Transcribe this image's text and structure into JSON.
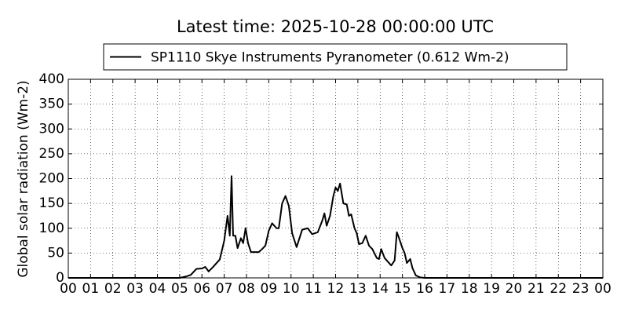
{
  "chart_data": {
    "type": "line",
    "title": "Latest time: 2025-10-28 00:00:00 UTC",
    "ylabel": "Global solar radiation (Wm-2)",
    "legend": "upper center",
    "grid": true,
    "xlim": [
      0,
      24
    ],
    "ylim": [
      0,
      400
    ],
    "yticks": [
      0,
      50,
      100,
      150,
      200,
      250,
      300,
      350,
      400
    ],
    "xticks": [
      {
        "value": 0,
        "label": "00"
      },
      {
        "value": 1,
        "label": "01"
      },
      {
        "value": 2,
        "label": "02"
      },
      {
        "value": 3,
        "label": "03"
      },
      {
        "value": 4,
        "label": "04"
      },
      {
        "value": 5,
        "label": "05"
      },
      {
        "value": 6,
        "label": "06"
      },
      {
        "value": 7,
        "label": "07"
      },
      {
        "value": 8,
        "label": "08"
      },
      {
        "value": 9,
        "label": "09"
      },
      {
        "value": 10,
        "label": "10"
      },
      {
        "value": 11,
        "label": "11"
      },
      {
        "value": 12,
        "label": "12"
      },
      {
        "value": 13,
        "label": "13"
      },
      {
        "value": 14,
        "label": "14"
      },
      {
        "value": 15,
        "label": "15"
      },
      {
        "value": 16,
        "label": "16"
      },
      {
        "value": 17,
        "label": "17"
      },
      {
        "value": 18,
        "label": "18"
      },
      {
        "value": 19,
        "label": "19"
      },
      {
        "value": 20,
        "label": "20"
      },
      {
        "value": 21,
        "label": "21"
      },
      {
        "value": 22,
        "label": "22"
      },
      {
        "value": 23,
        "label": "23"
      },
      {
        "value": 24,
        "label": "00"
      }
    ],
    "series": [
      {
        "name": "SP1110 Skye Instruments Pyranometer (0.612 Wm-2)",
        "color": "#000000",
        "x": [
          0,
          5.0,
          5.3,
          5.5,
          5.75,
          6.0,
          6.15,
          6.3,
          6.5,
          6.8,
          7.0,
          7.15,
          7.25,
          7.33,
          7.4,
          7.5,
          7.6,
          7.75,
          7.85,
          7.96,
          8.07,
          8.2,
          8.55,
          8.7,
          8.85,
          9.0,
          9.15,
          9.35,
          9.45,
          9.6,
          9.75,
          9.9,
          10.05,
          10.25,
          10.5,
          10.75,
          10.95,
          11.2,
          11.4,
          11.5,
          11.6,
          11.75,
          11.9,
          12.0,
          12.1,
          12.2,
          12.35,
          12.5,
          12.6,
          12.7,
          12.85,
          12.95,
          13.05,
          13.2,
          13.35,
          13.5,
          13.65,
          13.85,
          13.95,
          14.05,
          14.2,
          14.4,
          14.5,
          14.65,
          14.75,
          14.85,
          15.0,
          15.1,
          15.2,
          15.35,
          15.45,
          15.6,
          15.8,
          16.0,
          24
        ],
        "values": [
          0,
          0,
          3,
          6,
          18,
          19,
          22,
          13,
          22,
          37,
          75,
          125,
          85,
          205,
          85,
          85,
          60,
          80,
          70,
          100,
          70,
          52,
          52,
          58,
          65,
          95,
          110,
          100,
          100,
          150,
          165,
          145,
          90,
          62,
          97,
          100,
          88,
          92,
          115,
          130,
          105,
          125,
          165,
          182,
          175,
          190,
          150,
          148,
          125,
          128,
          100,
          90,
          68,
          70,
          85,
          65,
          58,
          40,
          38,
          58,
          40,
          30,
          25,
          35,
          92,
          80,
          60,
          50,
          30,
          38,
          20,
          5,
          1,
          0,
          0
        ]
      }
    ]
  }
}
